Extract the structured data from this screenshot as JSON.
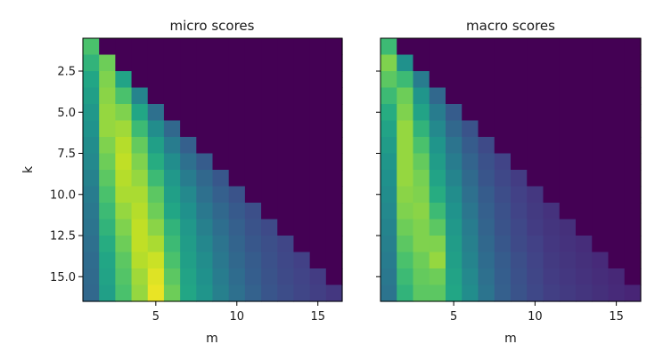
{
  "chart_data": [
    {
      "type": "heatmap",
      "title": "micro scores",
      "xlabel": "m",
      "ylabel": "k",
      "x": [
        1,
        2,
        3,
        4,
        5,
        6,
        7,
        8,
        9,
        10,
        11,
        12,
        13,
        14,
        15,
        16
      ],
      "y": [
        1,
        2,
        3,
        4,
        5,
        6,
        7,
        8,
        9,
        10,
        11,
        12,
        13,
        14,
        15,
        16
      ],
      "xticks": [
        "5",
        "10",
        "15"
      ],
      "yticks": [
        "2.5",
        "5.0",
        "7.5",
        "10.0",
        "12.5",
        "15.0"
      ],
      "xlim": [
        0.5,
        16.5
      ],
      "ylim": [
        16.5,
        0.5
      ],
      "colormap": "viridis",
      "vmin": 0.0,
      "vmax": 1.0,
      "values": [
        [
          0.82
        ],
        [
          0.78,
          0.86
        ],
        [
          0.74,
          0.88,
          0.72
        ],
        [
          0.7,
          0.89,
          0.82,
          0.56
        ],
        [
          0.66,
          0.9,
          0.88,
          0.74,
          0.46
        ],
        [
          0.63,
          0.9,
          0.91,
          0.8,
          0.6,
          0.42
        ],
        [
          0.6,
          0.88,
          0.93,
          0.85,
          0.7,
          0.52,
          0.38
        ],
        [
          0.58,
          0.86,
          0.94,
          0.88,
          0.76,
          0.6,
          0.46,
          0.36
        ],
        [
          0.55,
          0.84,
          0.93,
          0.9,
          0.8,
          0.66,
          0.52,
          0.42,
          0.34
        ],
        [
          0.52,
          0.82,
          0.92,
          0.92,
          0.84,
          0.7,
          0.58,
          0.46,
          0.38,
          0.32
        ],
        [
          0.5,
          0.8,
          0.9,
          0.93,
          0.86,
          0.74,
          0.62,
          0.5,
          0.42,
          0.35,
          0.3
        ],
        [
          0.48,
          0.78,
          0.88,
          0.94,
          0.89,
          0.78,
          0.66,
          0.54,
          0.45,
          0.38,
          0.32,
          0.28
        ],
        [
          0.46,
          0.76,
          0.86,
          0.94,
          0.92,
          0.8,
          0.68,
          0.57,
          0.48,
          0.4,
          0.34,
          0.3,
          0.26
        ],
        [
          0.44,
          0.74,
          0.84,
          0.93,
          0.95,
          0.82,
          0.7,
          0.6,
          0.5,
          0.42,
          0.36,
          0.31,
          0.27,
          0.24
        ],
        [
          0.43,
          0.72,
          0.83,
          0.91,
          0.97,
          0.84,
          0.72,
          0.62,
          0.52,
          0.44,
          0.37,
          0.32,
          0.28,
          0.25,
          0.22
        ],
        [
          0.42,
          0.7,
          0.82,
          0.9,
          0.98,
          0.86,
          0.74,
          0.64,
          0.54,
          0.46,
          0.39,
          0.33,
          0.29,
          0.26,
          0.23,
          0.2
        ]
      ]
    },
    {
      "type": "heatmap",
      "title": "macro scores",
      "xlabel": "m",
      "ylabel": "",
      "x": [
        1,
        2,
        3,
        4,
        5,
        6,
        7,
        8,
        9,
        10,
        11,
        12,
        13,
        14,
        15,
        16
      ],
      "y": [
        1,
        2,
        3,
        4,
        5,
        6,
        7,
        8,
        9,
        10,
        11,
        12,
        13,
        14,
        15,
        16
      ],
      "xticks": [
        "5",
        "10",
        "15"
      ],
      "yticks": [
        "",
        "",
        "",
        "",
        "",
        ""
      ],
      "xlim": [
        0.5,
        16.5
      ],
      "ylim": [
        16.5,
        0.5
      ],
      "colormap": "viridis",
      "vmin": 0.0,
      "vmax": 1.0,
      "values": [
        [
          0.8
        ],
        [
          0.88,
          0.62
        ],
        [
          0.84,
          0.8,
          0.52
        ],
        [
          0.8,
          0.86,
          0.64,
          0.42
        ],
        [
          0.76,
          0.88,
          0.72,
          0.52,
          0.36
        ],
        [
          0.72,
          0.9,
          0.78,
          0.58,
          0.42,
          0.32
        ],
        [
          0.68,
          0.9,
          0.82,
          0.64,
          0.48,
          0.36,
          0.28
        ],
        [
          0.65,
          0.9,
          0.85,
          0.68,
          0.52,
          0.4,
          0.31,
          0.25
        ],
        [
          0.62,
          0.9,
          0.87,
          0.72,
          0.56,
          0.43,
          0.33,
          0.27,
          0.22
        ],
        [
          0.6,
          0.89,
          0.88,
          0.76,
          0.6,
          0.46,
          0.36,
          0.29,
          0.24,
          0.2
        ],
        [
          0.58,
          0.88,
          0.89,
          0.8,
          0.63,
          0.49,
          0.38,
          0.31,
          0.25,
          0.21,
          0.18
        ],
        [
          0.56,
          0.86,
          0.88,
          0.84,
          0.66,
          0.52,
          0.4,
          0.32,
          0.27,
          0.22,
          0.19,
          0.17
        ],
        [
          0.54,
          0.84,
          0.88,
          0.88,
          0.68,
          0.54,
          0.42,
          0.34,
          0.28,
          0.24,
          0.2,
          0.18,
          0.16
        ],
        [
          0.52,
          0.82,
          0.86,
          0.9,
          0.7,
          0.56,
          0.44,
          0.36,
          0.3,
          0.25,
          0.21,
          0.19,
          0.17,
          0.15
        ],
        [
          0.5,
          0.8,
          0.85,
          0.86,
          0.72,
          0.58,
          0.46,
          0.37,
          0.31,
          0.26,
          0.22,
          0.2,
          0.18,
          0.16,
          0.14
        ],
        [
          0.48,
          0.78,
          0.84,
          0.84,
          0.74,
          0.6,
          0.48,
          0.38,
          0.32,
          0.27,
          0.23,
          0.21,
          0.19,
          0.17,
          0.15,
          0.13
        ]
      ]
    }
  ]
}
